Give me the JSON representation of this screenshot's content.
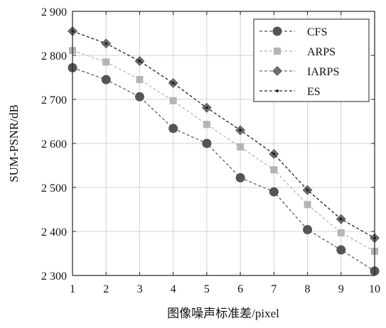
{
  "chart_data": {
    "type": "line",
    "title": "",
    "xlabel": "图像噪声标准差/pixel",
    "ylabel": "SUM-PSNR/dB",
    "x": [
      1,
      2,
      3,
      4,
      5,
      6,
      7,
      8,
      9,
      10
    ],
    "xlim": [
      1,
      10
    ],
    "ylim": [
      2300,
      2900
    ],
    "xticks": [
      "1",
      "2",
      "3",
      "4",
      "5",
      "6",
      "7",
      "8",
      "9",
      "10"
    ],
    "yticks": [
      {
        "value": 2300,
        "label": "2 300"
      },
      {
        "value": 2400,
        "label": "2 400"
      },
      {
        "value": 2500,
        "label": "2 500"
      },
      {
        "value": 2600,
        "label": "2 600"
      },
      {
        "value": 2700,
        "label": "2 700"
      },
      {
        "value": 2800,
        "label": "2 800"
      },
      {
        "value": 2900,
        "label": "2 900"
      }
    ],
    "grid": true,
    "legend_position": "top-right",
    "series": [
      {
        "name": "CFS",
        "marker": "circle",
        "color": "#555555",
        "values": [
          2772,
          2745,
          2706,
          2634,
          2600,
          2522,
          2490,
          2404,
          2358,
          2310
        ]
      },
      {
        "name": "ARPS",
        "marker": "square",
        "color": "#b4b4b4",
        "values": [
          2811,
          2785,
          2745,
          2697,
          2643,
          2592,
          2540,
          2461,
          2397,
          2355
        ]
      },
      {
        "name": "IARPS",
        "marker": "diamond",
        "color": "#6e6e6e",
        "values": [
          2855,
          2827,
          2787,
          2737,
          2681,
          2630,
          2576,
          2494,
          2428,
          2385
        ]
      },
      {
        "name": "ES",
        "marker": "dot",
        "color": "#222222",
        "values": [
          2855,
          2827,
          2787,
          2737,
          2681,
          2630,
          2576,
          2494,
          2428,
          2385
        ]
      }
    ]
  }
}
